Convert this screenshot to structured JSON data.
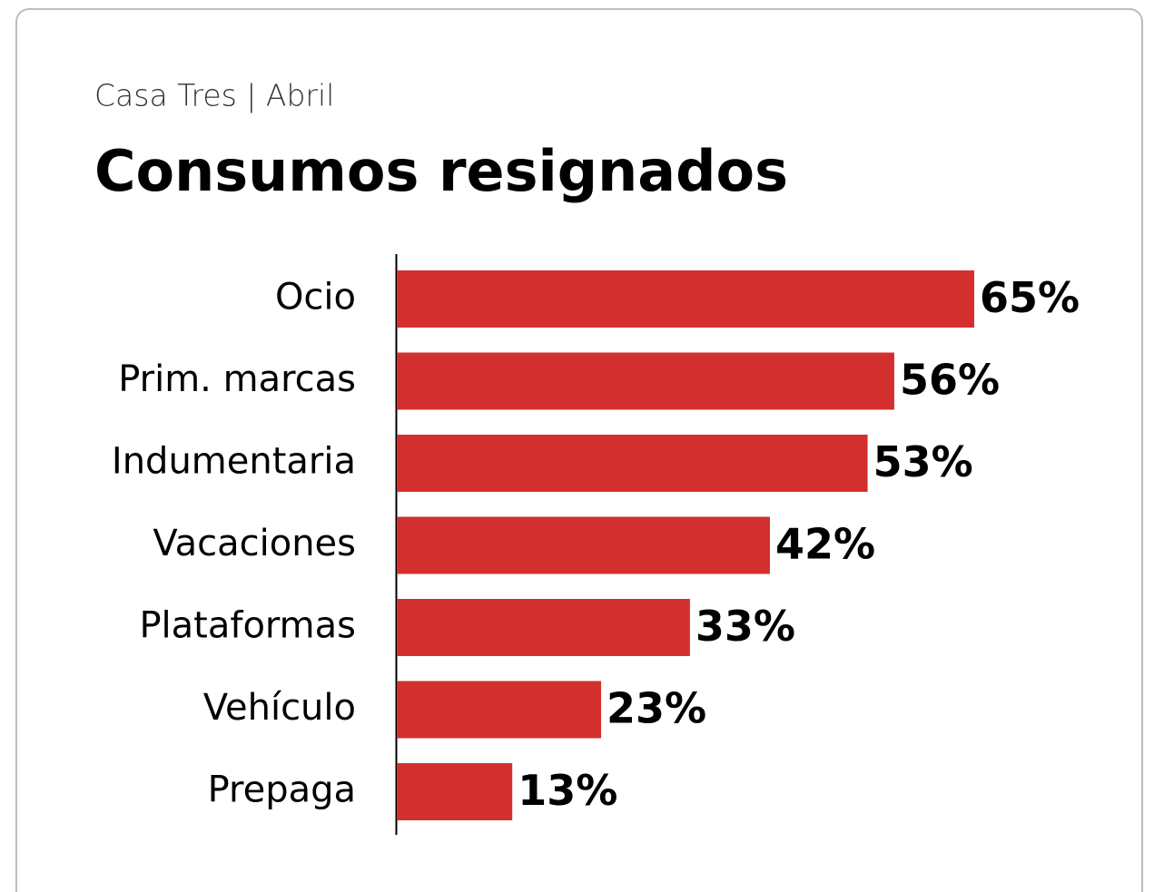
{
  "chart_data": {
    "type": "bar",
    "orientation": "horizontal",
    "subtitle": "Casa Tres | Abril",
    "title": "Consumos resignados",
    "categories": [
      "Ocio",
      "Prim. marcas",
      "Indumentaria",
      "Vacaciones",
      "Plataformas",
      "Vehículo",
      "Prepaga"
    ],
    "values": [
      65,
      56,
      53,
      42,
      33,
      23,
      13
    ],
    "value_labels": [
      "65%",
      "56%",
      "53%",
      "42%",
      "33%",
      "23%",
      "13%"
    ],
    "color": "#d32f2f"
  }
}
